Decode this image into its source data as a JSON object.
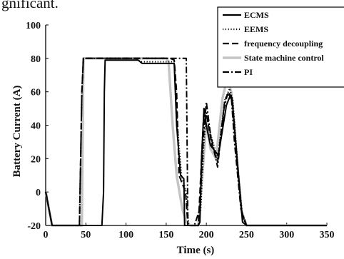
{
  "caption": "gnificant.",
  "chart_data": {
    "type": "line",
    "xlabel": "Time (s)",
    "ylabel": "Battery Current (A)",
    "xlim": [
      0,
      350
    ],
    "ylim": [
      -20,
      100
    ],
    "xticks": [
      0,
      50,
      100,
      150,
      200,
      250,
      300,
      350
    ],
    "yticks": [
      -20,
      0,
      20,
      40,
      60,
      80,
      100
    ],
    "grid": false,
    "legend_position": "top-right",
    "series": [
      {
        "name": "ECMS",
        "color": "#000000",
        "dash": "solid",
        "x": [
          0,
          1,
          4,
          8,
          12,
          70,
          72,
          73,
          74,
          115,
          120,
          160,
          163,
          168,
          172,
          173,
          190,
          192,
          194,
          197,
          200,
          205,
          215,
          225,
          230,
          232,
          240,
          245,
          250,
          350
        ],
        "y": [
          0,
          -2,
          -10,
          -20,
          -20,
          -20,
          0,
          60,
          79,
          79,
          77,
          77,
          40,
          10,
          8,
          -20,
          -20,
          -18,
          20,
          50,
          40,
          28,
          22,
          52,
          58,
          56,
          10,
          -18,
          -20,
          -20
        ]
      },
      {
        "name": "EEMS",
        "color": "#000000",
        "dash": "dotted",
        "x": [
          0,
          1,
          4,
          8,
          12,
          42,
          45,
          47,
          112,
          118,
          160,
          164,
          169,
          172,
          175,
          178,
          190,
          193,
          197,
          200,
          205,
          214,
          223,
          229,
          233,
          240,
          245,
          250,
          350
        ],
        "y": [
          0,
          -2,
          -10,
          -20,
          -20,
          -20,
          60,
          80,
          80,
          78,
          78,
          40,
          10,
          5,
          0,
          -20,
          -20,
          -10,
          30,
          48,
          35,
          20,
          55,
          62,
          55,
          10,
          -15,
          -20,
          -20
        ]
      },
      {
        "name": "frequency decoupling",
        "color": "#000000",
        "dash": "dashed",
        "x": [
          0,
          1,
          4,
          8,
          12,
          42,
          45,
          47,
          155,
          160,
          163,
          166,
          170,
          174,
          177,
          185,
          190,
          194,
          197,
          201,
          207,
          214,
          223,
          228,
          233,
          238,
          244,
          250,
          350
        ],
        "y": [
          0,
          -2,
          -10,
          -20,
          -20,
          -20,
          60,
          80,
          80,
          79,
          60,
          10,
          5,
          0,
          -20,
          -20,
          -20,
          20,
          50,
          44,
          28,
          18,
          55,
          60,
          52,
          20,
          -12,
          -20,
          -20
        ]
      },
      {
        "name": "State machine control",
        "color": "#c4c4c4",
        "dash": "solid",
        "x": [
          0,
          1,
          4,
          8,
          12,
          45,
          47,
          150,
          153,
          158,
          163,
          170,
          175,
          180,
          190,
          195,
          200,
          205,
          212,
          220,
          226,
          231,
          236,
          244,
          250,
          350
        ],
        "y": [
          0,
          -2,
          -10,
          -20,
          -20,
          -20,
          80,
          80,
          78,
          40,
          10,
          -10,
          -18,
          -20,
          -20,
          10,
          42,
          26,
          20,
          56,
          68,
          60,
          30,
          -12,
          -20,
          -20
        ]
      },
      {
        "name": "PI",
        "color": "#000000",
        "dash": "dashdot",
        "x": [
          0,
          1,
          4,
          8,
          12,
          42,
          45,
          47,
          175,
          177,
          185,
          192,
          196,
          200,
          205,
          214,
          222,
          226,
          231,
          235,
          243,
          250,
          350
        ],
        "y": [
          0,
          -2,
          -10,
          -20,
          -20,
          -20,
          60,
          80,
          80,
          -20,
          -20,
          -10,
          30,
          54,
          35,
          15,
          50,
          58,
          58,
          30,
          -10,
          -20,
          -20
        ]
      }
    ]
  }
}
